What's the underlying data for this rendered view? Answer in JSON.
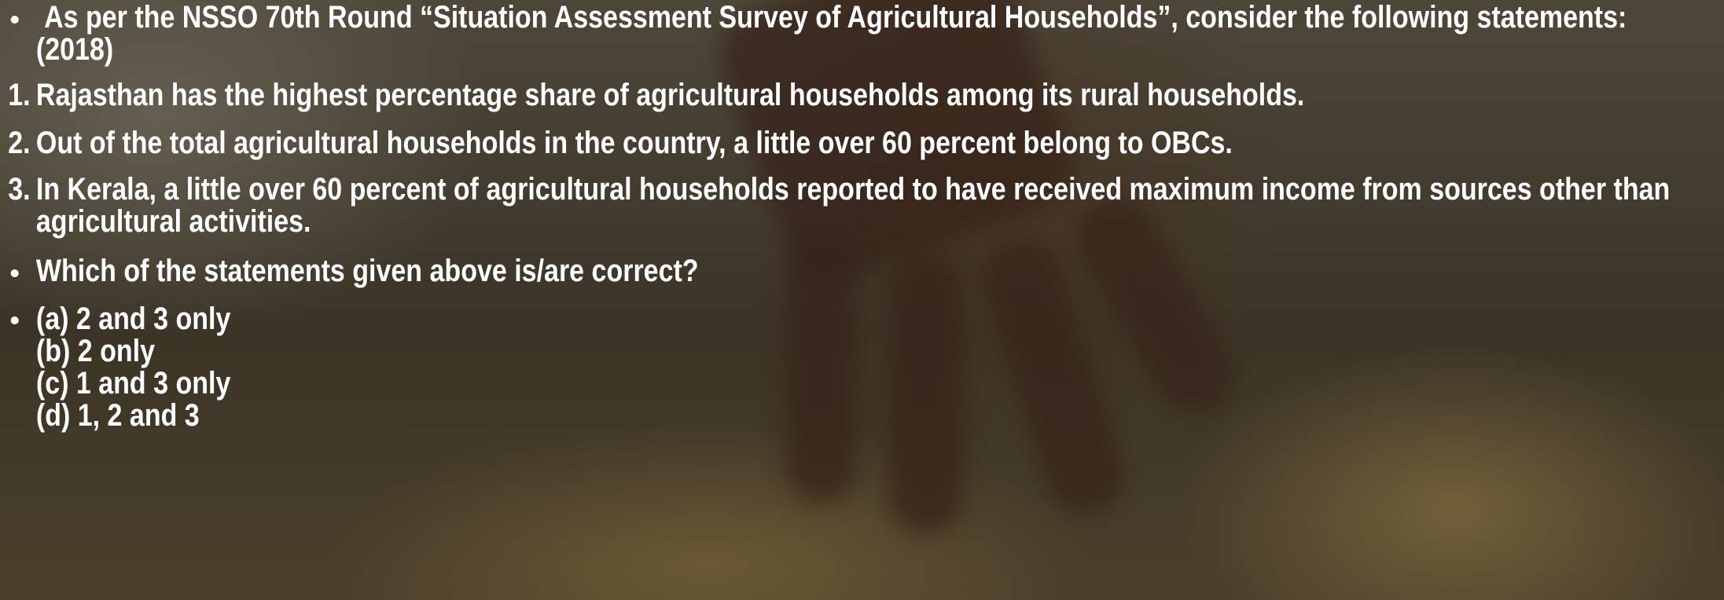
{
  "intro": "As per the NSSO 70th Round “Situation Assessment Survey of Agricultural Households”, consider the following statements: (2018)",
  "statements": [
    {
      "number": "1.",
      "text": "Rajasthan has the highest percentage share of agricultural households among its rural households."
    },
    {
      "number": "2.",
      "text": "Out of the total agricultural households in the country, a little over 60 percent belong to OBCs."
    },
    {
      "number": "3.",
      "text": "In Kerala, a little over 60 percent of agricultural households reported to have received maximum income from sources other than agricultural activities."
    }
  ],
  "question": "Which of the statements given above is/are correct?",
  "options": [
    "(a) 2 and 3 only",
    "(b) 2 only",
    "(c) 1 and 3 only",
    "(d) 1, 2 and 3"
  ]
}
